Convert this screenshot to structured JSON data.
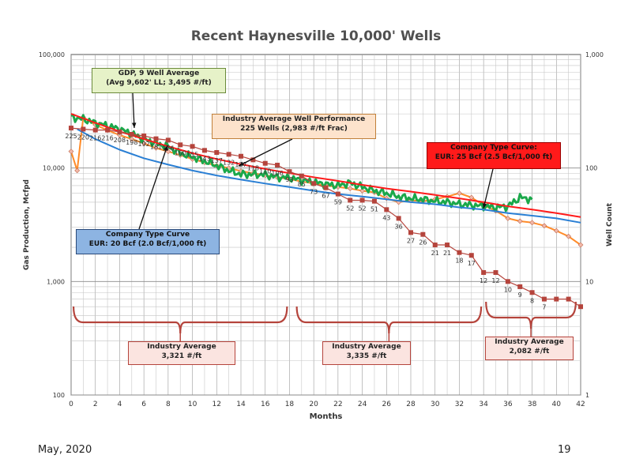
{
  "title": "Recent Haynesville 10,000' Wells",
  "footer": {
    "date": "May, 2020",
    "page": "19"
  },
  "colors": {
    "industry": "#ff8c2a",
    "gdp": "#1aa84a",
    "tc25": "#ff1a1a",
    "tc20": "#2a7fd4",
    "wellcount": "#b5443c",
    "bracket": "#b5443c"
  },
  "annotations": {
    "gdp": {
      "line1": "GDP, 9 Well Average",
      "line2": "(Avg 9,602' LL; 3,495 #/ft)"
    },
    "industry": {
      "line1": "Industry Average Well Performance",
      "line2": "225 Wells (2,983 #/ft Frac)"
    },
    "tc25": {
      "line1": "Company Type Curve:",
      "line2": "EUR: 25 Bcf (2.5 Bcf/1,000 ft)"
    },
    "tc20": {
      "line1": "Company Type Curve",
      "line2": "EUR: 20 Bcf (2.0 Bcf/1,000 ft)"
    },
    "ia1": {
      "line1": "Industry Average",
      "line2": "3,321 #/ft"
    },
    "ia2": {
      "line1": "Industry Average",
      "line2": "3,335 #/ft"
    },
    "ia3": {
      "line1": "Industry Average",
      "line2": "2,082 #/ft"
    }
  },
  "chart_data": {
    "type": "line",
    "title": "Recent Haynesville 10,000' Wells",
    "xlabel": "Months",
    "ylabel": "Gas Production, Mcfpd",
    "y2label": "Well Count",
    "xlim": [
      0,
      42
    ],
    "ylim": [
      100,
      100000
    ],
    "y2lim": [
      1,
      1000
    ],
    "yscale": "log",
    "y2scale": "log",
    "grid": true,
    "x_ticks": [
      "0",
      "2",
      "4",
      "6",
      "8",
      "10",
      "12",
      "14",
      "16",
      "18",
      "20",
      "22",
      "24",
      "26",
      "28",
      "30",
      "32",
      "34",
      "36",
      "38",
      "40",
      "42"
    ],
    "y_ticks": [
      "100",
      "1,000",
      "10,000",
      "100,000"
    ],
    "y2_ticks": [
      "1",
      "10",
      "100",
      "1,000"
    ],
    "series": [
      {
        "name": "Industry Average Well Performance",
        "axis": "left",
        "x": [
          0,
          0.5,
          1,
          2,
          3,
          4,
          5,
          6,
          7,
          8,
          9,
          10,
          11,
          12,
          13,
          14,
          15,
          16,
          17,
          18,
          19,
          20,
          21,
          22,
          23,
          24,
          25,
          26,
          27,
          28,
          29,
          30,
          31,
          32,
          33,
          34,
          35,
          36,
          37,
          38,
          39,
          40,
          41,
          42
        ],
        "y": [
          14000,
          9500,
          28000,
          24000,
          21500,
          19500,
          18000,
          16500,
          15000,
          14000,
          13000,
          12000,
          11200,
          10500,
          10000,
          9400,
          9000,
          8600,
          8300,
          8000,
          7600,
          7300,
          7000,
          6800,
          6600,
          6300,
          6100,
          5400,
          5000,
          5200,
          5100,
          5300,
          5600,
          6000,
          5500,
          4700,
          4200,
          3600,
          3400,
          3300,
          3100,
          2800,
          2500,
          2100
        ]
      },
      {
        "name": "GDP, 9 Well Average",
        "axis": "left",
        "x": [
          0,
          1,
          2,
          3,
          4,
          5,
          6,
          7,
          8,
          9,
          10,
          11,
          12,
          13,
          14,
          15,
          16,
          17,
          18,
          19,
          20,
          21,
          22,
          23,
          24,
          25,
          26,
          27,
          28,
          29,
          30,
          31,
          32,
          33,
          34,
          35,
          36,
          37,
          38
        ],
        "y": [
          28000,
          27000,
          25000,
          23500,
          22000,
          20000,
          18000,
          16500,
          15500,
          13500,
          12500,
          11500,
          10500,
          9500,
          8800,
          8800,
          8700,
          8300,
          8200,
          7800,
          7500,
          7200,
          7000,
          7400,
          6800,
          6300,
          6000,
          5600,
          5400,
          5300,
          5100,
          5000,
          4800,
          4700,
          4600,
          4500,
          4600,
          5500,
          5300
        ]
      },
      {
        "name": "Company Type Curve: EUR: 25 Bcf (2.5 Bcf/1,000 ft)",
        "axis": "left",
        "x": [
          0,
          2,
          4,
          6,
          8,
          10,
          12,
          14,
          16,
          18,
          20,
          22,
          24,
          26,
          28,
          30,
          32,
          34,
          36,
          38,
          40,
          42
        ],
        "y": [
          30000,
          25000,
          21000,
          18000,
          15500,
          13500,
          12000,
          10800,
          9800,
          9000,
          8300,
          7700,
          7100,
          6600,
          6200,
          5800,
          5400,
          5000,
          4600,
          4300,
          4000,
          3700
        ]
      },
      {
        "name": "Company Type Curve EUR: 20 Bcf (2.0 Bcf/1,000 ft)",
        "axis": "left",
        "x": [
          0.5,
          2,
          4,
          6,
          8,
          10,
          12,
          14,
          16,
          18,
          20,
          22,
          24,
          26,
          28,
          30,
          32,
          34,
          36,
          38,
          40,
          42
        ],
        "y": [
          22000,
          18000,
          14500,
          12200,
          10700,
          9500,
          8600,
          7900,
          7300,
          6800,
          6300,
          5900,
          5600,
          5300,
          5000,
          4800,
          4500,
          4300,
          4000,
          3800,
          3600,
          3300
        ]
      },
      {
        "name": "Well Count",
        "axis": "right",
        "x": [
          0,
          1,
          2,
          3,
          4,
          5,
          6,
          7,
          8,
          9,
          10,
          11,
          12,
          13,
          14,
          15,
          16,
          17,
          18,
          19,
          20,
          21,
          22,
          23,
          24,
          25,
          26,
          27,
          28,
          29,
          30,
          31,
          32,
          33,
          34,
          35,
          36,
          37,
          38,
          39,
          40,
          41,
          42
        ],
        "y": [
          225,
          220,
          216,
          216,
          208,
          198,
          192,
          181,
          176,
          160,
          155,
          143,
          137,
          132,
          127,
          118,
          110,
          106,
          93,
          85,
          73,
          67,
          59,
          52,
          52,
          51,
          43,
          36,
          27,
          26,
          21,
          21,
          18,
          17,
          12,
          12,
          10,
          9,
          8,
          7,
          7,
          7,
          6
        ],
        "labels": [
          "225",
          "220",
          "216",
          "216",
          "208",
          "198",
          "192",
          "181",
          "176",
          "160",
          "155",
          "143",
          "137",
          "132",
          "127",
          "118",
          "110",
          "106",
          "93",
          "85",
          "73",
          "67",
          "59",
          "52",
          "52",
          "51",
          "43",
          "36",
          "27",
          "26",
          "21",
          "21",
          "18",
          "17",
          "12",
          "12",
          "10",
          "9",
          "8",
          "7"
        ]
      }
    ]
  }
}
